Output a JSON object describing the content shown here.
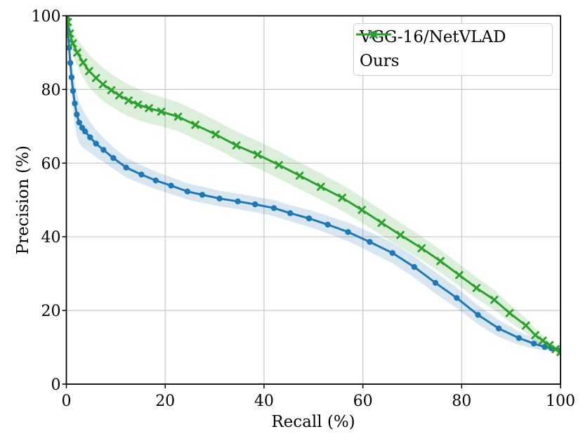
{
  "figure": {
    "xlabel": "Recall (%)",
    "ylabel": "Precision (%)"
  },
  "legend": {
    "items": [
      {
        "label": "VGG-16/NetVLAD",
        "color": "#1f77b4",
        "marker": "circle"
      },
      {
        "label": "Ours",
        "color": "#2ca02c",
        "marker": "x"
      }
    ]
  },
  "colors": {
    "blue_line": "#1f77b4",
    "blue_band": "rgba(31,119,180,0.18)",
    "green_line": "#2ca02c",
    "green_band": "rgba(44,160,44,0.17)",
    "grid": "#c8c8c8",
    "spine": "#000000"
  },
  "chart_data": {
    "type": "line",
    "title": "",
    "xlabel": "Recall (%)",
    "ylabel": "Precision (%)",
    "xlim": [
      0,
      100
    ],
    "ylim": [
      0,
      100
    ],
    "x_ticks": [
      0,
      20,
      40,
      60,
      80,
      100
    ],
    "y_ticks": [
      0,
      20,
      40,
      60,
      80,
      100
    ],
    "grid": true,
    "legend_position": "upper right",
    "series": [
      {
        "name": "VGG-16/NetVLAD",
        "color": "#1f77b4",
        "band_color": "rgba(31,119,180,0.18)",
        "marker": "circle",
        "x": [
          0,
          0.3,
          0.55,
          0.8,
          1.05,
          1.35,
          1.7,
          2.1,
          2.6,
          3.2,
          3.8,
          4.8,
          6.0,
          7.5,
          9.5,
          12.1,
          15.2,
          18.1,
          21.2,
          24.5,
          27.5,
          31,
          34.7,
          38.2,
          42,
          45.3,
          49.1,
          52.9,
          57,
          61.4,
          66,
          70.4,
          74.7,
          79,
          83.3,
          87.5,
          91.6,
          94.6,
          96.8,
          98.2,
          100
        ],
        "y": [
          100,
          95.8,
          91.3,
          87.2,
          83.3,
          79.6,
          76.2,
          73.2,
          71.0,
          69.6,
          68.6,
          67.0,
          65.3,
          63.6,
          61.4,
          58.8,
          56.9,
          55.3,
          53.9,
          52.3,
          51.4,
          50.4,
          49.6,
          48.8,
          47.8,
          46.4,
          45.0,
          43.3,
          41.3,
          38.6,
          35.6,
          31.8,
          27.5,
          23.4,
          18.8,
          15.1,
          12.5,
          11.0,
          10.1,
          9.7,
          9.2
        ],
        "band_halfwidth": [
          0.8,
          2.5,
          3.5,
          4.5,
          5.2,
          5.6,
          5.8,
          5.8,
          5.6,
          5.2,
          4.8,
          4.2,
          3.7,
          3.3,
          2.9,
          2.7,
          2.5,
          2.4,
          2.3,
          2.2,
          2.2,
          2.1,
          2.1,
          2.1,
          2.2,
          2.2,
          2.3,
          2.4,
          2.5,
          2.7,
          2.8,
          2.9,
          2.9,
          2.8,
          2.6,
          2.3,
          1.8,
          1.4,
          1.0,
          0.7,
          0.4
        ]
      },
      {
        "name": "Ours",
        "color": "#2ca02c",
        "band_color": "rgba(44,160,44,0.17)",
        "marker": "x",
        "x": [
          0,
          0.3,
          0.7,
          1.3,
          2.2,
          3.4,
          4.6,
          6.0,
          7.4,
          9.1,
          10.7,
          12.6,
          14.5,
          16.7,
          19.2,
          22.6,
          26.1,
          30.2,
          34.4,
          38.7,
          43.0,
          47.2,
          51.5,
          55.8,
          59.8,
          63.8,
          67.6,
          71.9,
          75.7,
          79.5,
          83.0,
          86.6,
          89.7,
          93.0,
          94.9,
          96.4,
          97.8,
          99.0,
          100
        ],
        "y": [
          100,
          98.3,
          95.2,
          92.5,
          90.0,
          87.3,
          85.0,
          83.1,
          81.4,
          79.8,
          78.4,
          77.0,
          75.9,
          74.9,
          74.0,
          72.6,
          70.4,
          67.8,
          64.8,
          62.3,
          59.5,
          56.6,
          53.6,
          50.6,
          47.3,
          43.8,
          40.5,
          36.9,
          33.4,
          29.6,
          26.1,
          22.9,
          19.3,
          15.9,
          13.3,
          11.8,
          10.6,
          9.5,
          8.7
        ],
        "band_halfwidth": [
          0.5,
          1.5,
          2.5,
          3.2,
          3.8,
          4.2,
          4.4,
          4.5,
          4.5,
          4.4,
          4.4,
          4.3,
          4.2,
          4.1,
          4.0,
          3.9,
          3.9,
          3.8,
          3.8,
          3.7,
          3.7,
          3.6,
          3.6,
          3.5,
          3.5,
          3.4,
          3.3,
          3.2,
          3.1,
          3.0,
          2.9,
          2.7,
          2.4,
          2.0,
          1.7,
          1.4,
          1.1,
          0.8,
          0.5
        ]
      }
    ]
  }
}
